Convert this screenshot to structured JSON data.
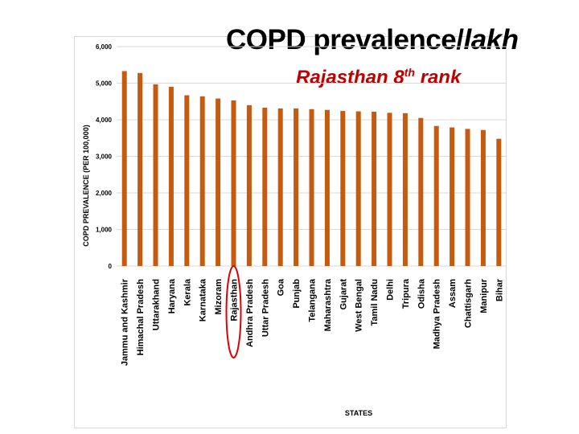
{
  "slide": {
    "title_main": "COPD prevalence/",
    "title_italic": "lakh",
    "subtitle_main": "Rajasthan 8",
    "subtitle_sup": "th",
    "subtitle_end": " rank"
  },
  "colors": {
    "bar": "#c55a11",
    "grid": "#d9d9d9",
    "highlight": "#e00000",
    "subtitle": "#c00000"
  },
  "highlight_category": "Rajasthan",
  "chart_data": {
    "type": "bar",
    "categories": [
      "Jammu and Kashmir",
      "Himachal Pradesh",
      "Uttarakhand",
      "Haryana",
      "Kerala",
      "Karnataka",
      "Mizoram",
      "Rajasthan",
      "Andhra Pradesh",
      "Uttar Pradesh",
      "Goa",
      "Punjab",
      "Telangana",
      "Maharashtra",
      "Gujarat",
      "West Bengal",
      "Tamil Nadu",
      "Delhi",
      "Tripura",
      "Odisha",
      "Madhya Pradesh",
      "Assam",
      "Chattisgarh",
      "Manipur",
      "Bihar"
    ],
    "values": [
      5330,
      5280,
      4970,
      4900,
      4670,
      4640,
      4580,
      4530,
      4400,
      4330,
      4310,
      4310,
      4290,
      4270,
      4240,
      4230,
      4220,
      4190,
      4180,
      4050,
      3830,
      3790,
      3750,
      3720,
      3480
    ],
    "xlabel": "STATES",
    "ylabel": "COPD PREVALENCE  (PER 100,000)",
    "yticks": [
      "0",
      "1,000",
      "2,000",
      "3,000",
      "4,000",
      "5,000",
      "6,000"
    ],
    "ylim": [
      0,
      6000
    ],
    "grid": true
  }
}
